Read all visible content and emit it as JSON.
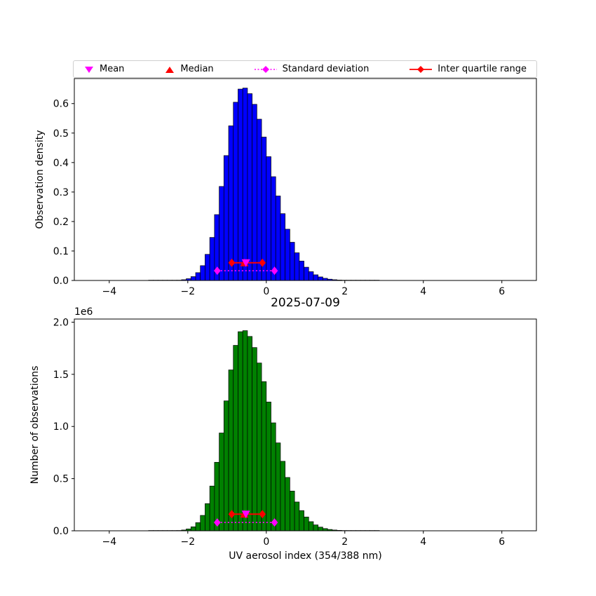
{
  "figure": {
    "title": "2025-07-09",
    "xlabel": "UV aerosol index (354/388 nm)",
    "offset_label": "1e6",
    "background": "#ffffff"
  },
  "colors": {
    "top_bar": "#0000ff",
    "bottom_bar": "#008000",
    "bar_edge": "#000000",
    "mean": "#ff00ff",
    "median": "#ff0000",
    "std": "#ff00ff",
    "iqr": "#ff0000",
    "axis": "#000000",
    "legend_border": "#cfcfcf"
  },
  "legend": {
    "items": [
      {
        "label": "Mean",
        "marker": "triangle-down",
        "color": "#ff00ff"
      },
      {
        "label": "Median",
        "marker": "triangle-up",
        "color": "#ff0000"
      },
      {
        "label": "Standard deviation",
        "marker": "diamond-dotted-line",
        "color": "#ff00ff"
      },
      {
        "label": "Inter quartile range",
        "marker": "diamond-solid-line",
        "color": "#ff0000"
      }
    ]
  },
  "chart_data": [
    {
      "type": "bar",
      "role": "density-histogram",
      "title": "",
      "ylabel": "Observation density",
      "xlabel": "",
      "bar_color": "#0000ff",
      "xlim": [
        -4.89,
        6.88
      ],
      "ylim": [
        0,
        0.685
      ],
      "xtick_values": [
        -4,
        -2,
        0,
        2,
        4,
        6
      ],
      "xtick_labels": [
        "−4",
        "−2",
        "0",
        "2",
        "4",
        "6"
      ],
      "ytick_values": [
        0.0,
        0.1,
        0.2,
        0.3,
        0.4,
        0.5,
        0.6
      ],
      "ytick_labels": [
        "0.0",
        "0.1",
        "0.2",
        "0.3",
        "0.4",
        "0.5",
        "0.6"
      ],
      "bin_width": 0.12,
      "bin_centers": [
        -2.94,
        -2.82,
        -2.7,
        -2.58,
        -2.46,
        -2.34,
        -2.22,
        -2.1,
        -1.98,
        -1.86,
        -1.74,
        -1.62,
        -1.5,
        -1.38,
        -1.26,
        -1.14,
        -1.02,
        -0.9,
        -0.78,
        -0.66,
        -0.54,
        -0.42,
        -0.3,
        -0.18,
        -0.06,
        0.06,
        0.18,
        0.3,
        0.42,
        0.54,
        0.66,
        0.78,
        0.9,
        1.02,
        1.14,
        1.26,
        1.38,
        1.5,
        1.62,
        1.74,
        1.86,
        1.98,
        2.1,
        2.22,
        2.34,
        2.46,
        2.58,
        2.7,
        2.82
      ],
      "values": [
        1e-05,
        1e-05,
        2e-05,
        6e-05,
        0.00013,
        0.00037,
        0.001,
        0.0025,
        0.006,
        0.013,
        0.0265,
        0.0502,
        0.0886,
        0.1459,
        0.2234,
        0.3189,
        0.4236,
        0.5245,
        0.6046,
        0.6492,
        0.6526,
        0.6337,
        0.5975,
        0.5471,
        0.4864,
        0.42,
        0.352,
        0.2866,
        0.2266,
        0.1739,
        0.1296,
        0.0939,
        0.0659,
        0.045,
        0.0298,
        0.0192,
        0.012,
        0.0073,
        0.0043,
        0.0025,
        0.0014,
        0.0008,
        0.0005,
        0.0003,
        0.0002,
        0.0002,
        0.0001,
        0.0001,
        0.0001
      ],
      "stats": {
        "mean": -0.52,
        "median": -0.56,
        "std": 0.73,
        "q1": -0.88,
        "q3": -0.1,
        "marker_y": 0.06,
        "std_y": 0.033
      }
    },
    {
      "type": "bar",
      "role": "count-histogram",
      "title": "2025-07-09",
      "ylabel": "Number of observations",
      "xlabel": "UV aerosol index (354/388 nm)",
      "y_offset_text": "1e6",
      "bar_color": "#008000",
      "xlim": [
        -4.89,
        6.88
      ],
      "ylim": [
        0,
        2030000
      ],
      "xtick_values": [
        -4,
        -2,
        0,
        2,
        4,
        6
      ],
      "xtick_labels": [
        "−4",
        "−2",
        "0",
        "2",
        "4",
        "6"
      ],
      "ytick_values": [
        0,
        500000,
        1000000,
        1500000,
        2000000
      ],
      "ytick_labels": [
        "0.0",
        "0.5",
        "1.0",
        "1.5",
        "2.0"
      ],
      "bin_width": 0.12,
      "bin_centers": [
        -2.94,
        -2.82,
        -2.7,
        -2.58,
        -2.46,
        -2.34,
        -2.22,
        -2.1,
        -1.98,
        -1.86,
        -1.74,
        -1.62,
        -1.5,
        -1.38,
        -1.26,
        -1.14,
        -1.02,
        -0.9,
        -0.78,
        -0.66,
        -0.54,
        -0.42,
        -0.3,
        -0.18,
        -0.06,
        0.06,
        0.18,
        0.3,
        0.42,
        0.54,
        0.66,
        0.78,
        0.9,
        1.02,
        1.14,
        1.26,
        1.38,
        1.5,
        1.62,
        1.74,
        1.86,
        1.98,
        2.1,
        2.22,
        2.34,
        2.46,
        2.58,
        2.7,
        2.82
      ],
      "values": [
        3,
        15,
        59,
        176,
        382,
        1088,
        2940,
        7350,
        17640,
        38220,
        77910,
        147590,
        260480,
        428950,
        656800,
        937570,
        1245380,
        1542030,
        1777520,
        1908650,
        1918640,
        1863080,
        1756650,
        1608470,
        1430020,
        1234800,
        1034880,
        842600,
        666200,
        511270,
        381020,
        276070,
        193750,
        132300,
        87610,
        56450,
        35280,
        21460,
        12640,
        7350,
        4120,
        2350,
        1470,
        880,
        590,
        440,
        290,
        210,
        150
      ],
      "stats": {
        "mean": -0.52,
        "median": -0.56,
        "std": 0.73,
        "q1": -0.88,
        "q3": -0.1,
        "marker_y": 160000,
        "std_y": 80000
      }
    }
  ]
}
